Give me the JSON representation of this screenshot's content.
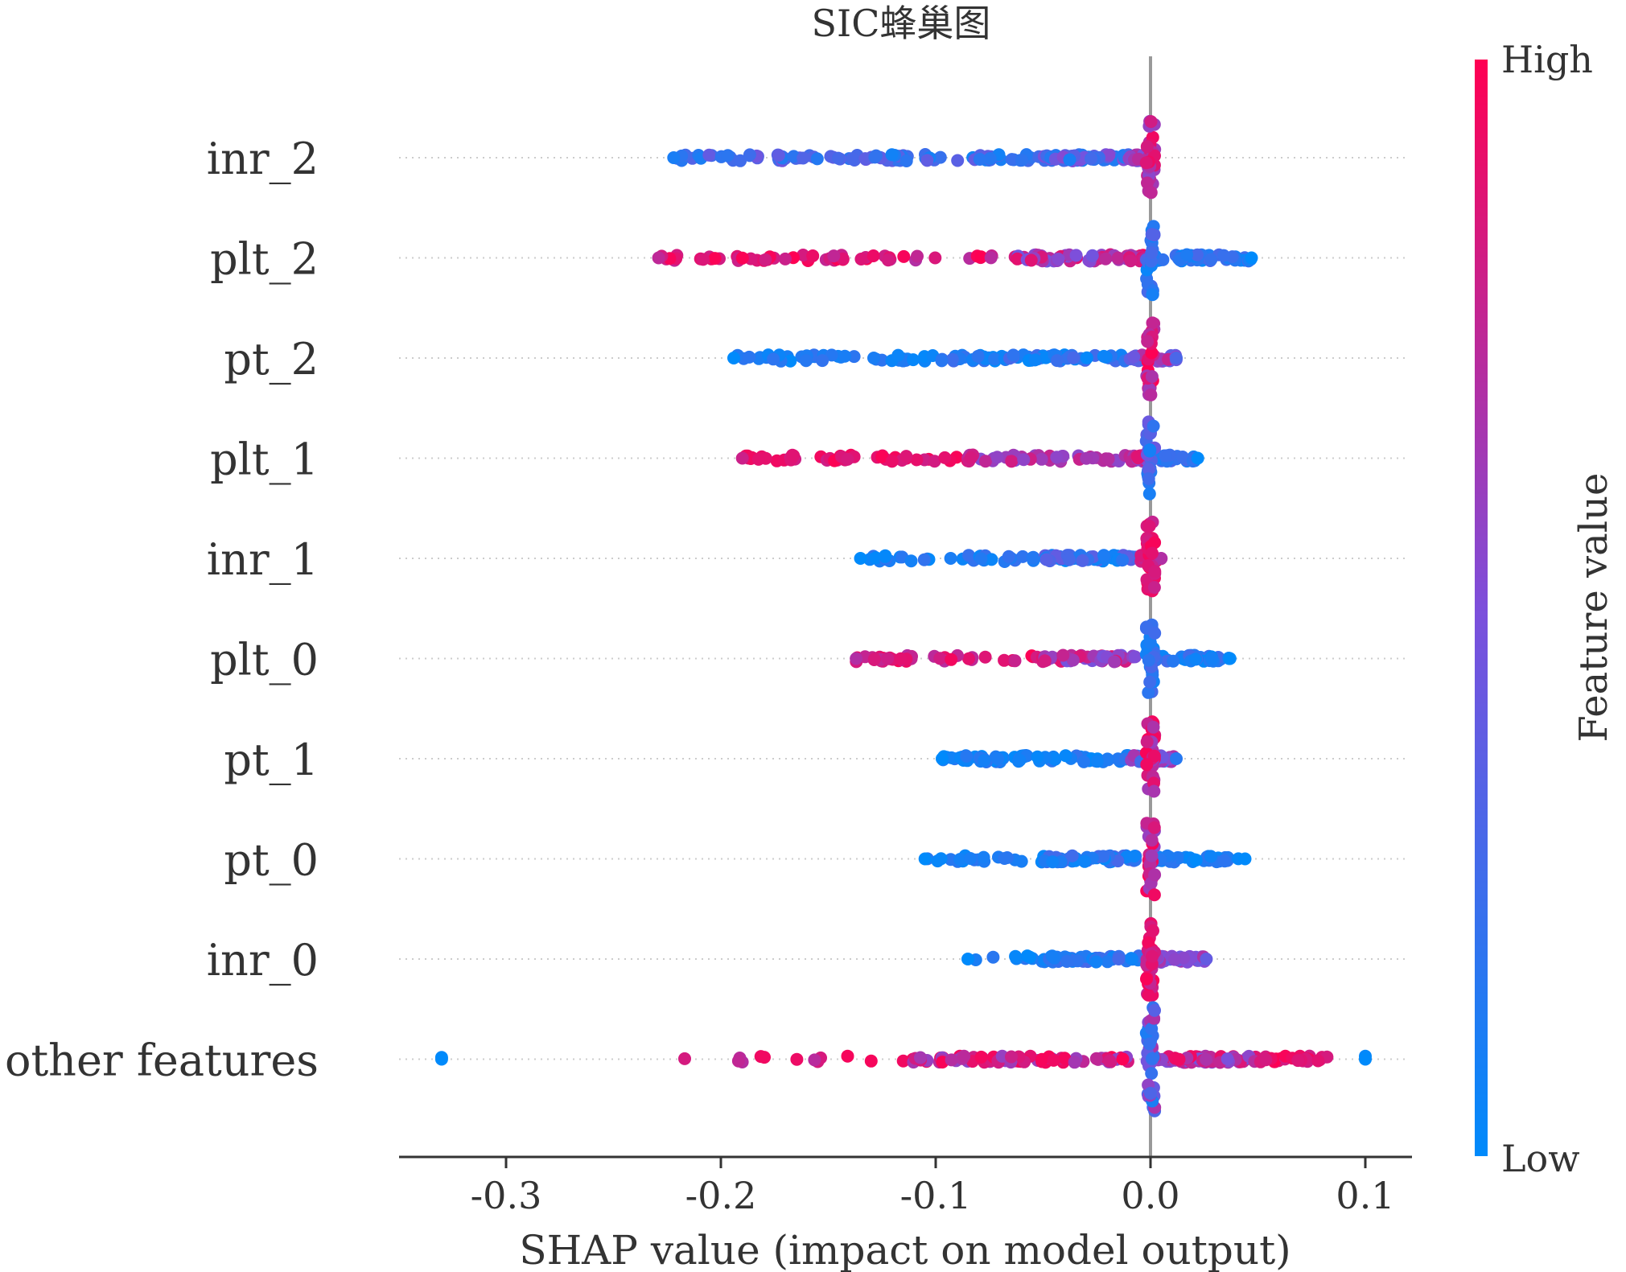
{
  "chart_data": {
    "type": "scatter",
    "subtype": "shap-beeswarm",
    "title": "SIC蜂巢图",
    "xlabel": "SHAP value (impact on model output)",
    "ylabel": "",
    "xlim": [
      -0.35,
      0.12
    ],
    "x_ticks": [
      -0.3,
      -0.2,
      -0.1,
      0.0,
      0.1
    ],
    "x_tick_labels": [
      "-0.3",
      "-0.2",
      "-0.1",
      "0.0",
      "0.1"
    ],
    "zero_line": 0.0,
    "colorbar": {
      "label": "Feature value",
      "high_label": "High",
      "low_label": "Low",
      "low_color": "#008afb",
      "mid_color": "#7d4fdb",
      "high_color": "#ff0052"
    },
    "features": [
      {
        "name": "inr_2",
        "min": -0.222,
        "max": 0.0,
        "clusters": [
          {
            "from": -0.222,
            "to": -0.13,
            "n": 45,
            "fv": [
              0.1,
              0.45
            ]
          },
          {
            "from": -0.13,
            "to": -0.05,
            "n": 50,
            "fv": [
              0.05,
              0.4
            ]
          },
          {
            "from": -0.05,
            "to": -0.01,
            "n": 70,
            "fv": [
              0.1,
              0.55
            ]
          },
          {
            "from": -0.01,
            "to": 0.0,
            "n": 40,
            "fv": [
              0.4,
              0.75
            ]
          }
        ],
        "stack": {
          "n": 30,
          "fv": [
            0.55,
            0.95
          ],
          "spread": 1
        }
      },
      {
        "name": "plt_2",
        "min": -0.229,
        "max": 0.047,
        "clusters": [
          {
            "from": -0.229,
            "to": -0.12,
            "n": 45,
            "fv": [
              0.75,
              1.0
            ]
          },
          {
            "from": -0.12,
            "to": -0.07,
            "n": 10,
            "fv": [
              0.7,
              1.0
            ]
          },
          {
            "from": -0.07,
            "to": -0.01,
            "n": 50,
            "fv": [
              0.45,
              0.9
            ]
          },
          {
            "from": -0.01,
            "to": 0.0,
            "n": 25,
            "fv": [
              0.6,
              1.0
            ]
          },
          {
            "from": 0.0,
            "to": 0.047,
            "n": 45,
            "fv": [
              0.0,
              0.3
            ]
          }
        ],
        "stack": {
          "n": 28,
          "fv": [
            0.0,
            0.35
          ],
          "spread": 1
        }
      },
      {
        "name": "pt_2",
        "min": -0.194,
        "max": 0.012,
        "clusters": [
          {
            "from": -0.194,
            "to": -0.1,
            "n": 40,
            "fv": [
              0.0,
              0.2
            ]
          },
          {
            "from": -0.1,
            "to": -0.01,
            "n": 70,
            "fv": [
              0.0,
              0.3
            ]
          },
          {
            "from": -0.01,
            "to": 0.012,
            "n": 30,
            "fv": [
              0.3,
              0.8
            ]
          }
        ],
        "stack": {
          "n": 26,
          "fv": [
            0.6,
            1.0
          ],
          "spread": 1
        }
      },
      {
        "name": "plt_1",
        "min": -0.19,
        "max": 0.022,
        "clusters": [
          {
            "from": -0.19,
            "to": -0.085,
            "n": 45,
            "fv": [
              0.8,
              1.0
            ]
          },
          {
            "from": -0.085,
            "to": -0.01,
            "n": 50,
            "fv": [
              0.5,
              0.85
            ]
          },
          {
            "from": -0.01,
            "to": 0.0,
            "n": 25,
            "fv": [
              0.5,
              0.9
            ]
          },
          {
            "from": 0.0,
            "to": 0.022,
            "n": 25,
            "fv": [
              0.0,
              0.3
            ]
          }
        ],
        "stack": {
          "n": 28,
          "fv": [
            0.05,
            0.45
          ],
          "spread": 1
        }
      },
      {
        "name": "inr_1",
        "min": -0.135,
        "max": 0.005,
        "clusters": [
          {
            "from": -0.135,
            "to": -0.05,
            "n": 35,
            "fv": [
              0.0,
              0.25
            ]
          },
          {
            "from": -0.05,
            "to": -0.005,
            "n": 60,
            "fv": [
              0.0,
              0.4
            ]
          },
          {
            "from": -0.005,
            "to": 0.005,
            "n": 20,
            "fv": [
              0.7,
              1.0
            ]
          }
        ],
        "stack": {
          "n": 28,
          "fv": [
            0.75,
            1.0
          ],
          "spread": 1
        }
      },
      {
        "name": "plt_0",
        "min": -0.137,
        "max": 0.037,
        "clusters": [
          {
            "from": -0.137,
            "to": -0.05,
            "n": 45,
            "fv": [
              0.7,
              1.0
            ]
          },
          {
            "from": -0.05,
            "to": -0.005,
            "n": 40,
            "fv": [
              0.45,
              0.9
            ]
          },
          {
            "from": 0.0,
            "to": 0.037,
            "n": 40,
            "fv": [
              0.0,
              0.3
            ]
          }
        ],
        "stack": {
          "n": 28,
          "fv": [
            0.0,
            0.35
          ],
          "spread": 1
        }
      },
      {
        "name": "pt_1",
        "min": -0.097,
        "max": 0.012,
        "clusters": [
          {
            "from": -0.097,
            "to": -0.01,
            "n": 70,
            "fv": [
              0.0,
              0.2
            ]
          },
          {
            "from": -0.01,
            "to": 0.012,
            "n": 30,
            "fv": [
              0.15,
              0.7
            ]
          }
        ],
        "stack": {
          "n": 28,
          "fv": [
            0.55,
            1.0
          ],
          "spread": 1
        }
      },
      {
        "name": "pt_0",
        "min": -0.105,
        "max": 0.044,
        "clusters": [
          {
            "from": -0.105,
            "to": -0.05,
            "n": 20,
            "fv": [
              0.0,
              0.2
            ]
          },
          {
            "from": -0.05,
            "to": -0.005,
            "n": 55,
            "fv": [
              0.0,
              0.3
            ]
          },
          {
            "from": 0.0,
            "to": 0.044,
            "n": 35,
            "fv": [
              0.0,
              0.25
            ]
          }
        ],
        "stack": {
          "n": 28,
          "fv": [
            0.55,
            1.0
          ],
          "spread": 1
        }
      },
      {
        "name": "inr_0",
        "min": -0.085,
        "max": 0.026,
        "clusters": [
          {
            "from": -0.085,
            "to": -0.05,
            "n": 10,
            "fv": [
              0.0,
              0.2
            ]
          },
          {
            "from": -0.05,
            "to": -0.005,
            "n": 50,
            "fv": [
              0.0,
              0.3
            ]
          },
          {
            "from": 0.0,
            "to": 0.026,
            "n": 30,
            "fv": [
              0.4,
              0.7
            ]
          }
        ],
        "stack": {
          "n": 28,
          "fv": [
            0.75,
            1.0
          ],
          "spread": 1
        }
      },
      {
        "name": "other features",
        "min": -0.33,
        "max": 0.1,
        "clusters": [
          {
            "from": -0.33,
            "to": -0.33,
            "n": 1,
            "fv": [
              0.0,
              0.05
            ]
          },
          {
            "from": -0.22,
            "to": -0.13,
            "n": 12,
            "fv": [
              0.7,
              1.0
            ]
          },
          {
            "from": -0.12,
            "to": -0.01,
            "n": 80,
            "fv": [
              0.55,
              1.0
            ]
          },
          {
            "from": 0.0,
            "to": 0.05,
            "n": 70,
            "fv": [
              0.45,
              0.95
            ]
          },
          {
            "from": 0.05,
            "to": 0.083,
            "n": 30,
            "fv": [
              0.8,
              1.0
            ]
          },
          {
            "from": 0.1,
            "to": 0.1,
            "n": 1,
            "fv": [
              0.0,
              0.05
            ]
          }
        ],
        "stack": {
          "n": 40,
          "fv": [
            0.1,
            0.7
          ],
          "spread": 1.4
        }
      }
    ]
  }
}
